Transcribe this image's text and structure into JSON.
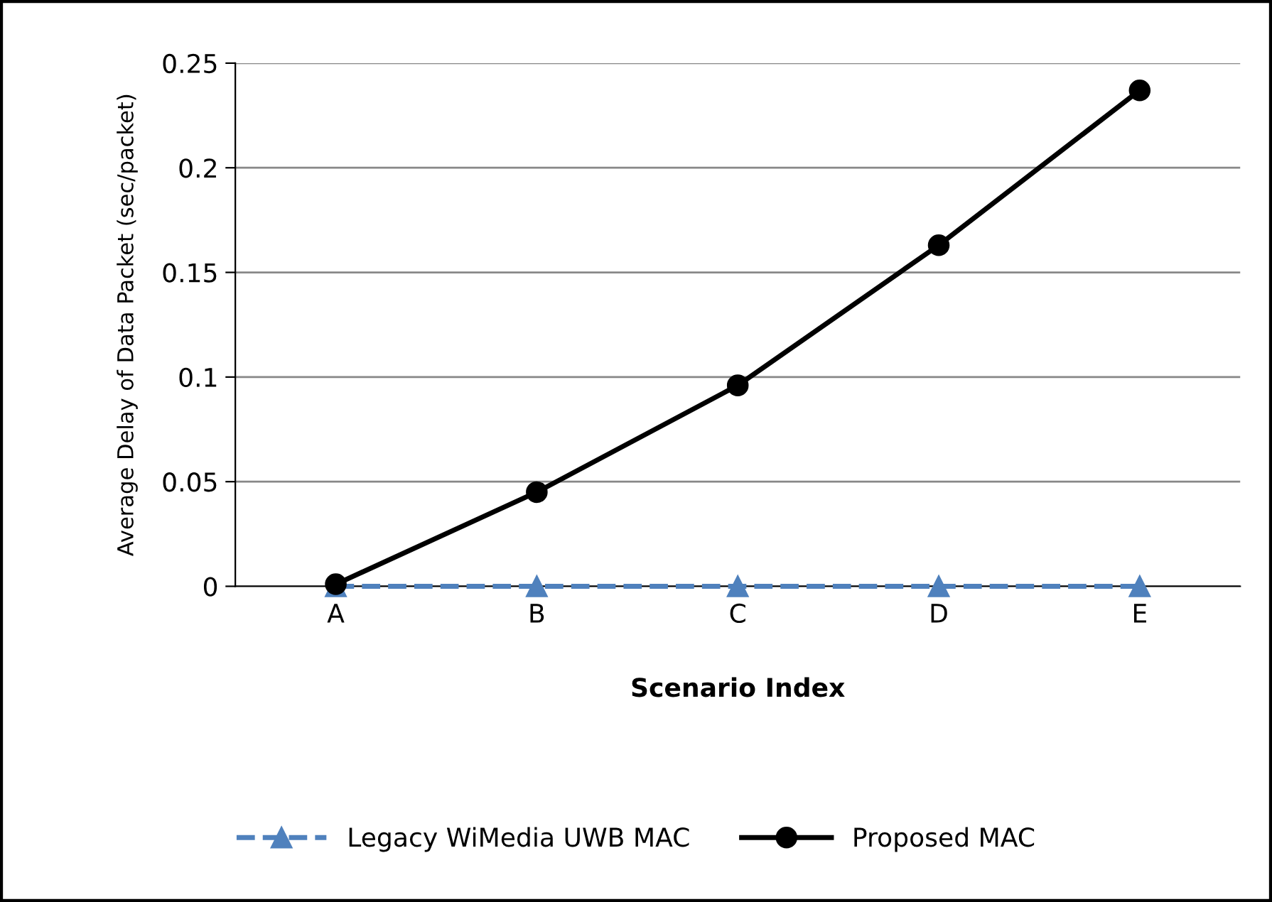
{
  "chart_data": {
    "type": "line",
    "xlabel": "Scenario Index",
    "ylabel": "Average Delay of Data Packet (sec/packet)",
    "categories": [
      "A",
      "B",
      "C",
      "D",
      "E"
    ],
    "series": [
      {
        "name": "Legacy WiMedia UWB MAC",
        "color": "#4f81bd",
        "values": [
          0,
          0,
          0,
          0,
          0
        ],
        "marker": "triangle",
        "line_style": "dashed"
      },
      {
        "name": "Proposed MAC",
        "color": "#000000",
        "values": [
          0.001,
          0.045,
          0.096,
          0.163,
          0.237
        ],
        "marker": "circle",
        "line_style": "solid"
      }
    ],
    "ylim": [
      0,
      0.25
    ],
    "yticks": [
      0,
      0.05,
      0.1,
      0.15,
      0.2,
      0.25
    ],
    "grid": "y",
    "legend": "bottom"
  }
}
